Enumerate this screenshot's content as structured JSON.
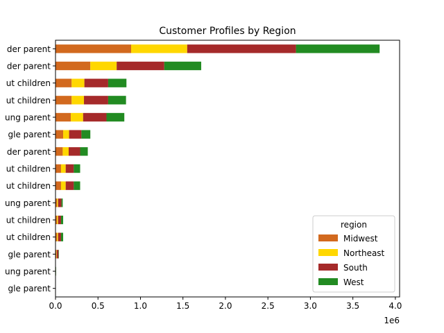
{
  "chart_data": {
    "type": "bar",
    "orientation": "horizontal",
    "stacked": true,
    "title": "Customer Profiles by Region",
    "xlabel": "",
    "ylabel": "",
    "x_scale_label": "1e6",
    "xlim": [
      0,
      4050000
    ],
    "xticks": [
      0,
      500000,
      1000000,
      1500000,
      2000000,
      2500000,
      3000000,
      3500000,
      4000000
    ],
    "xtick_labels": [
      "0.0",
      "0.5",
      "1.0",
      "1.5",
      "2.0",
      "2.5",
      "3.0",
      "3.5",
      "4.0"
    ],
    "grid": false,
    "legend_title": "region",
    "legend_placement": "lower-right",
    "categories": [
      "der parent",
      "der parent",
      "ut children",
      "ut children",
      "ung parent",
      "gle parent",
      "der parent",
      "ut children",
      "ut children",
      "ung parent",
      "ut children",
      "ut children",
      "gle parent",
      "ung parent",
      "gle parent"
    ],
    "series": [
      {
        "name": "Midwest",
        "color": "#d2691e",
        "values": [
          890000,
          410000,
          190000,
          190000,
          180000,
          90000,
          85000,
          65000,
          65000,
          18000,
          18000,
          18000,
          10000,
          2000,
          1000
        ]
      },
      {
        "name": "Northeast",
        "color": "#ffd700",
        "values": [
          660000,
          310000,
          150000,
          145000,
          145000,
          70000,
          70000,
          55000,
          55000,
          12000,
          12000,
          12000,
          5000,
          1000,
          1000
        ]
      },
      {
        "name": "South",
        "color": "#a52a2a",
        "values": [
          1280000,
          560000,
          280000,
          285000,
          275000,
          145000,
          135000,
          95000,
          95000,
          40000,
          35000,
          35000,
          20000,
          2000,
          1000
        ]
      },
      {
        "name": "West",
        "color": "#228b22",
        "values": [
          985000,
          435000,
          215000,
          210000,
          210000,
          105000,
          90000,
          75000,
          75000,
          15000,
          25000,
          25000,
          5000,
          2000,
          1000
        ]
      }
    ]
  }
}
